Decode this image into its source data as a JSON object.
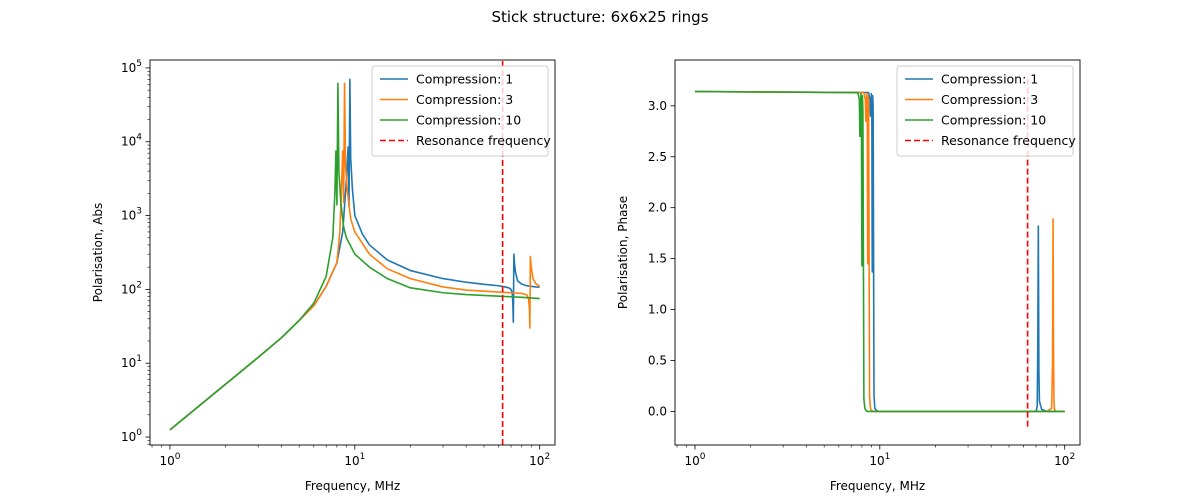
{
  "figure": {
    "title": "Stick structure: 6x6x25 rings"
  },
  "chart_data": [
    {
      "type": "line",
      "xlabel": "Frequency, MHz",
      "ylabel": "Polarisation, Abs",
      "xscale": "log",
      "yscale": "log",
      "xlim": [
        0.78,
        121
      ],
      "ylim": [
        0.78,
        128000
      ],
      "xticks": [
        {
          "value": 1,
          "base": "10",
          "exp": "0"
        },
        {
          "value": 10,
          "base": "10",
          "exp": "1"
        },
        {
          "value": 100,
          "base": "10",
          "exp": "2"
        }
      ],
      "yticks": [
        {
          "value": 1,
          "base": "10",
          "exp": "0"
        },
        {
          "value": 10,
          "base": "10",
          "exp": "1"
        },
        {
          "value": 100,
          "base": "10",
          "exp": "2"
        },
        {
          "value": 1000,
          "base": "10",
          "exp": "3"
        },
        {
          "value": 10000,
          "base": "10",
          "exp": "4"
        },
        {
          "value": 100000,
          "base": "10",
          "exp": "5"
        }
      ],
      "legend_position": "top-right",
      "grid": false,
      "series": [
        {
          "name": "Compression: 1",
          "color": "#1f77b4",
          "x": [
            1,
            2,
            3,
            4,
            5,
            6,
            7,
            8,
            8.6,
            9.0,
            9.2,
            9.3,
            9.4,
            9.5,
            9.7,
            10,
            11,
            12,
            15,
            20,
            30,
            40,
            50,
            60,
            65,
            68,
            70,
            71,
            71.5,
            72,
            72.5,
            73,
            74,
            76,
            80,
            85,
            90,
            95,
            100
          ],
          "y": [
            1.25,
            5.2,
            12,
            22,
            38,
            60,
            110,
            230,
            600,
            3000,
            8500,
            1350,
            70000,
            6000,
            2300,
            1000,
            560,
            400,
            250,
            180,
            140,
            125,
            117,
            112,
            108,
            105,
            100,
            90,
            70,
            36,
            300,
            230,
            170,
            130,
            118,
            112,
            110,
            108,
            107
          ]
        },
        {
          "name": "Compression: 3",
          "color": "#ff7f0e",
          "x": [
            1,
            2,
            3,
            4,
            5,
            6,
            7,
            8,
            8.3,
            8.5,
            8.6,
            8.7,
            8.8,
            8.9,
            9.1,
            9.5,
            10,
            12,
            15,
            20,
            30,
            40,
            60,
            70,
            80,
            85,
            87,
            88,
            88.5,
            89,
            90,
            92,
            95,
            100
          ],
          "y": [
            1.25,
            5.2,
            12,
            22,
            38,
            60,
            110,
            230,
            600,
            3000,
            7500,
            1500,
            62000,
            5000,
            2200,
            900,
            600,
            300,
            190,
            140,
            108,
            98,
            92,
            90,
            88,
            85,
            75,
            55,
            30,
            280,
            200,
            140,
            120,
            110
          ]
        },
        {
          "name": "Compression: 10",
          "color": "#2ca02c",
          "x": [
            1,
            2,
            3,
            4,
            5,
            6,
            7,
            7.6,
            7.8,
            7.9,
            8.0,
            8.1,
            8.2,
            8.4,
            8.7,
            9,
            10,
            12,
            15,
            20,
            30,
            40,
            60,
            80,
            100
          ],
          "y": [
            1.25,
            5.2,
            12,
            22,
            38,
            65,
            150,
            500,
            2000,
            7500,
            1400,
            62000,
            4000,
            1500,
            700,
            500,
            300,
            200,
            140,
            105,
            90,
            85,
            81,
            78,
            75
          ]
        },
        {
          "name": "Resonance frequency",
          "color": "#ff0000",
          "dashed": true,
          "x": [
            63,
            63
          ],
          "y": [
            0.78,
            128000
          ]
        }
      ]
    },
    {
      "type": "line",
      "xlabel": "Frequency, MHz",
      "ylabel": "Polarisation, Phase",
      "xscale": "log",
      "yscale": "linear",
      "xlim": [
        0.78,
        121
      ],
      "ylim": [
        -0.33,
        3.45
      ],
      "xticks": [
        {
          "value": 1,
          "base": "10",
          "exp": "0"
        },
        {
          "value": 10,
          "base": "10",
          "exp": "1"
        },
        {
          "value": 100,
          "base": "10",
          "exp": "2"
        }
      ],
      "yticks": [
        {
          "value": 0.0,
          "label": "0.0"
        },
        {
          "value": 0.5,
          "label": "0.5"
        },
        {
          "value": 1.0,
          "label": "1.0"
        },
        {
          "value": 1.5,
          "label": "1.5"
        },
        {
          "value": 2.0,
          "label": "2.0"
        },
        {
          "value": 2.5,
          "label": "2.5"
        },
        {
          "value": 3.0,
          "label": "3.0"
        }
      ],
      "legend_position": "top-right",
      "grid": false,
      "series": [
        {
          "name": "Compression: 1",
          "color": "#1f77b4",
          "x": [
            1,
            8.7,
            8.85,
            8.9,
            9.0,
            9.05,
            9.1,
            9.15,
            9.2,
            9.3,
            9.4,
            9.5,
            9.6,
            9.8,
            10,
            20,
            60,
            70,
            71,
            71.5,
            72,
            72.5,
            73,
            75,
            80,
            100
          ],
          "y": [
            3.14,
            3.13,
            3.06,
            2.9,
            3.12,
            3.05,
            1.37,
            3.1,
            3.0,
            0.15,
            0.03,
            0.02,
            0.01,
            0.0,
            0.0,
            0.0,
            0.0,
            0.0,
            0.05,
            0.6,
            1.82,
            0.4,
            0.1,
            0.02,
            0.0,
            0.0
          ]
        },
        {
          "name": "Compression: 3",
          "color": "#ff7f0e",
          "x": [
            1,
            8.2,
            8.35,
            8.4,
            8.5,
            8.55,
            8.6,
            8.65,
            8.7,
            8.8,
            8.9,
            9.0,
            9.2,
            10,
            20,
            60,
            80,
            85,
            86,
            86.5,
            87,
            87.5,
            88,
            90,
            100
          ],
          "y": [
            3.14,
            3.13,
            3.06,
            2.85,
            3.12,
            3.0,
            1.45,
            3.1,
            3.0,
            0.15,
            0.03,
            0.01,
            0.0,
            0.0,
            0.0,
            0.0,
            0.0,
            0.03,
            0.5,
            1.89,
            0.6,
            0.1,
            0.02,
            0.0,
            0.0
          ]
        },
        {
          "name": "Compression: 10",
          "color": "#2ca02c",
          "x": [
            1,
            7.6,
            7.75,
            7.8,
            7.9,
            7.95,
            8.0,
            8.05,
            8.1,
            8.2,
            8.3,
            8.5,
            10,
            20,
            60,
            100
          ],
          "y": [
            3.14,
            3.13,
            3.06,
            2.7,
            3.12,
            3.0,
            1.43,
            3.1,
            2.95,
            0.12,
            0.03,
            0.0,
            0.0,
            0.0,
            0.0,
            0.0
          ]
        },
        {
          "name": "Resonance frequency",
          "color": "#ff0000",
          "dashed": true,
          "x": [
            63,
            63
          ],
          "y": [
            -0.15,
            3.3
          ]
        }
      ]
    }
  ]
}
